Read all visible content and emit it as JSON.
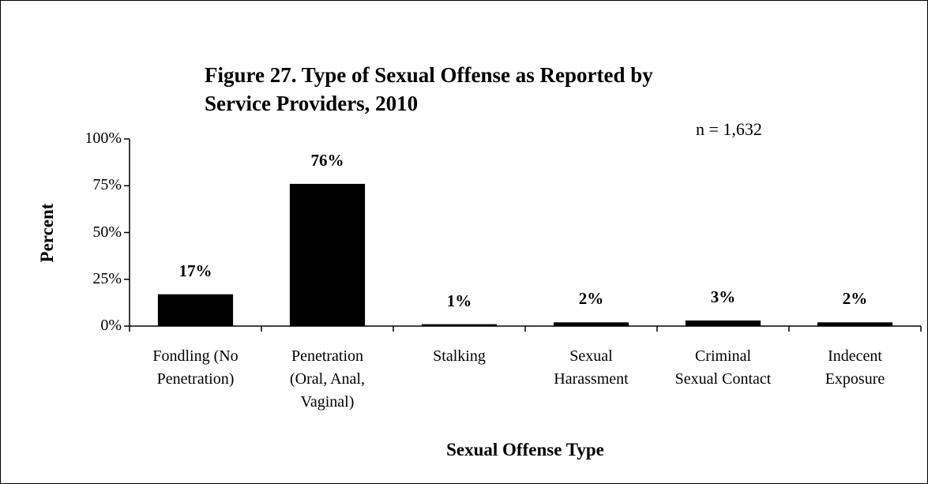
{
  "chart_data": {
    "type": "bar",
    "title": "Figure 27.  Type of Sexual Offense as Reported by\nService Providers, 2010",
    "annotation": "n = 1,632",
    "x_label": "Sexual Offense Type",
    "y_label": "Percent",
    "categories": [
      "Fondling (No\nPenetration)",
      "Penetration\n(Oral, Anal,\nVaginal)",
      "Stalking",
      "Sexual\nHarassment",
      "Criminal\nSexual Contact",
      "Indecent\nExposure"
    ],
    "values": [
      17,
      76,
      1,
      2,
      3,
      2
    ],
    "value_labels": [
      "17%",
      "76%",
      "1%",
      "2%",
      "3%",
      "2%"
    ],
    "color": "#000000",
    "ylim": [
      0,
      100
    ],
    "yticks": [
      {
        "value": 0,
        "label": "0%"
      },
      {
        "value": 25,
        "label": "25%"
      },
      {
        "value": 50,
        "label": "50%"
      },
      {
        "value": 75,
        "label": "75%"
      },
      {
        "value": 100,
        "label": "100%"
      }
    ],
    "grid": false
  }
}
